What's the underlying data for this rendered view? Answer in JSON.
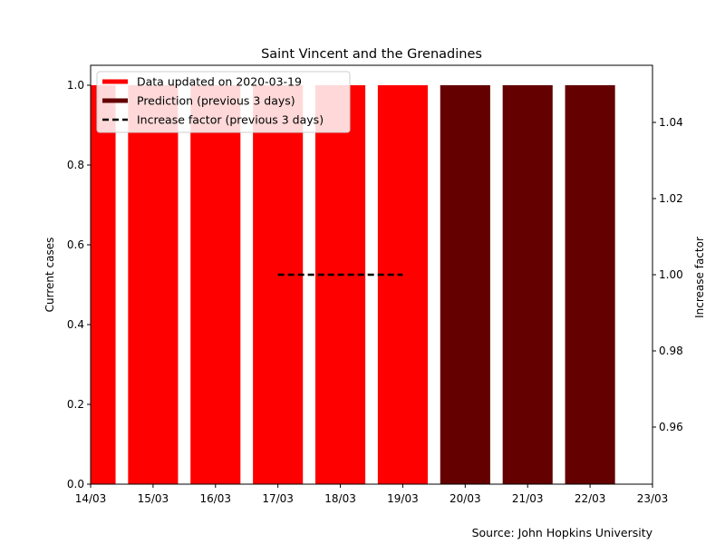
{
  "chart_data": {
    "type": "bar",
    "title": "Saint Vincent and the Grenadines",
    "ylabel": "Current cases",
    "ylabel_right": "Increase factor",
    "source": "Source: John Hopkins University",
    "ylim": [
      0,
      1.05
    ],
    "ylim_right": [
      0.945,
      1.055
    ],
    "yticks": [
      0.0,
      0.2,
      0.4,
      0.6,
      0.8,
      1.0
    ],
    "yticks_right": [
      0.96,
      0.98,
      1.0,
      1.02,
      1.04
    ],
    "xticks": [
      "14/03",
      "15/03",
      "16/03",
      "17/03",
      "18/03",
      "19/03",
      "20/03",
      "21/03",
      "22/03",
      "23/03"
    ],
    "series": [
      {
        "name": "Data updated on 2020-03-19",
        "color": "#ff0000",
        "type": "bar",
        "x": [
          "14/03",
          "15/03",
          "16/03",
          "17/03",
          "18/03",
          "19/03"
        ],
        "values": [
          1,
          1,
          1,
          1,
          1,
          1
        ]
      },
      {
        "name": "Prediction (previous 3 days)",
        "color": "#640000",
        "type": "bar",
        "x": [
          "20/03",
          "21/03",
          "22/03"
        ],
        "values": [
          1,
          1,
          1
        ]
      },
      {
        "name": "Increase factor (previous 3 days)",
        "color": "#000000",
        "type": "line",
        "style": "dashed",
        "axis": "right",
        "x": [
          "17/03",
          "18/03",
          "19/03"
        ],
        "values": [
          1.0,
          1.0,
          1.0
        ]
      }
    ],
    "legend_position": "top-left"
  }
}
